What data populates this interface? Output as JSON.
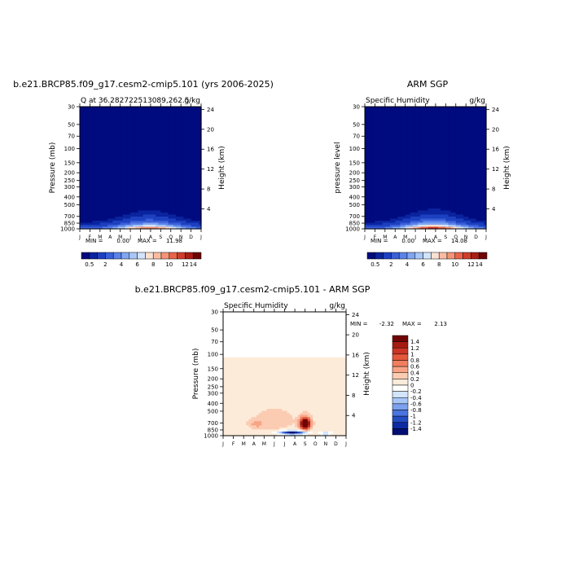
{
  "chart_data": [
    {
      "type": "heatmap",
      "title": "b.e21.BRCP85.f09_g17.cesm2-cmip5.101 (yrs 2006-2025)",
      "left_text": "Q at 36.282722513089,262.5",
      "right_text": "g/kg",
      "ylabel": "Pressure (mb)",
      "ylabel_right": "Height (km)",
      "x_ticks": [
        "J",
        "F",
        "M",
        "A",
        "M",
        "J",
        "J",
        "A",
        "S",
        "O",
        "N",
        "D",
        "J"
      ],
      "y_ticks": [
        30,
        50,
        70,
        100,
        150,
        200,
        250,
        300,
        400,
        500,
        700,
        850,
        1000
      ],
      "y_ticks_right": [
        24,
        20,
        16,
        12,
        8,
        4
      ],
      "min_label": "MIN =",
      "min_value": "0.00",
      "max_label": "MAX =",
      "max_value": "11.98",
      "peak_month": 6.9,
      "colorbar_labels": [
        "0.5",
        "2",
        "4",
        "6",
        "8",
        "10",
        "12",
        "14"
      ]
    },
    {
      "type": "heatmap",
      "title": "ARM SGP",
      "left_text": "Specific Humidity",
      "right_text": "g/kg",
      "ylabel": "pressure level",
      "ylabel_right": "Height (km)",
      "x_ticks": [
        "J",
        "F",
        "M",
        "A",
        "M",
        "J",
        "J",
        "A",
        "S",
        "O",
        "N",
        "D",
        "J"
      ],
      "y_ticks": [
        30,
        50,
        70,
        100,
        150,
        200,
        250,
        300,
        400,
        500,
        700,
        850,
        1000
      ],
      "y_ticks_right": [
        24,
        20,
        16,
        12,
        8,
        4
      ],
      "min_label": "MIN =",
      "min_value": "0.00",
      "max_label": "MAX =",
      "max_value": "14.08",
      "peak_month": 6.8,
      "colorbar_labels": [
        "0.5",
        "2",
        "4",
        "6",
        "8",
        "10",
        "12",
        "14"
      ]
    },
    {
      "type": "heatmap",
      "title": "b.e21.BRCP85.f09_g17.cesm2-cmip5.101 - ARM SGP",
      "left_text": "Specific Humidity",
      "right_text": "g/kg",
      "ylabel": "Pressure (mb)",
      "ylabel_right": "Height (km)",
      "x_ticks": [
        "J",
        "F",
        "M",
        "A",
        "M",
        "J",
        "J",
        "A",
        "S",
        "O",
        "N",
        "D",
        "J"
      ],
      "y_ticks": [
        30,
        50,
        70,
        100,
        150,
        200,
        250,
        300,
        400,
        500,
        700,
        850,
        1000
      ],
      "y_ticks_right": [
        24,
        20,
        16,
        12,
        8,
        4
      ],
      "min_label": "MIN =",
      "min_value": "-2.32",
      "max_label": "MAX =",
      "max_value": "2.13",
      "colorbar_labels": [
        "1.4",
        "1.2",
        "1",
        "0.8",
        "0.6",
        "0.4",
        "0.2",
        "0",
        "-0.2",
        "-0.4",
        "-0.6",
        "-0.8",
        "-1",
        "-1.2",
        "-1.4"
      ]
    }
  ],
  "colors": {
    "seq": [
      "#000b7f",
      "#0a239e",
      "#1c40c0",
      "#3a5fd8",
      "#5a82e8",
      "#80a6f2",
      "#a9c6f8",
      "#d2e4fb",
      "#fbe0d2",
      "#f9bca3",
      "#f49577",
      "#e8644b",
      "#d03d2c",
      "#a81f14",
      "#6e0504"
    ],
    "diff": [
      "#6e0504",
      "#a51b12",
      "#cc3425",
      "#e5583c",
      "#f27e5e",
      "#f7a486",
      "#fbcbb2",
      "#fdebd9",
      "#ffffff",
      "#d2e5fb",
      "#a7c6f6",
      "#7ba0ee",
      "#4a74df",
      "#244dc4",
      "#0c2aa1",
      "#020e73"
    ]
  }
}
